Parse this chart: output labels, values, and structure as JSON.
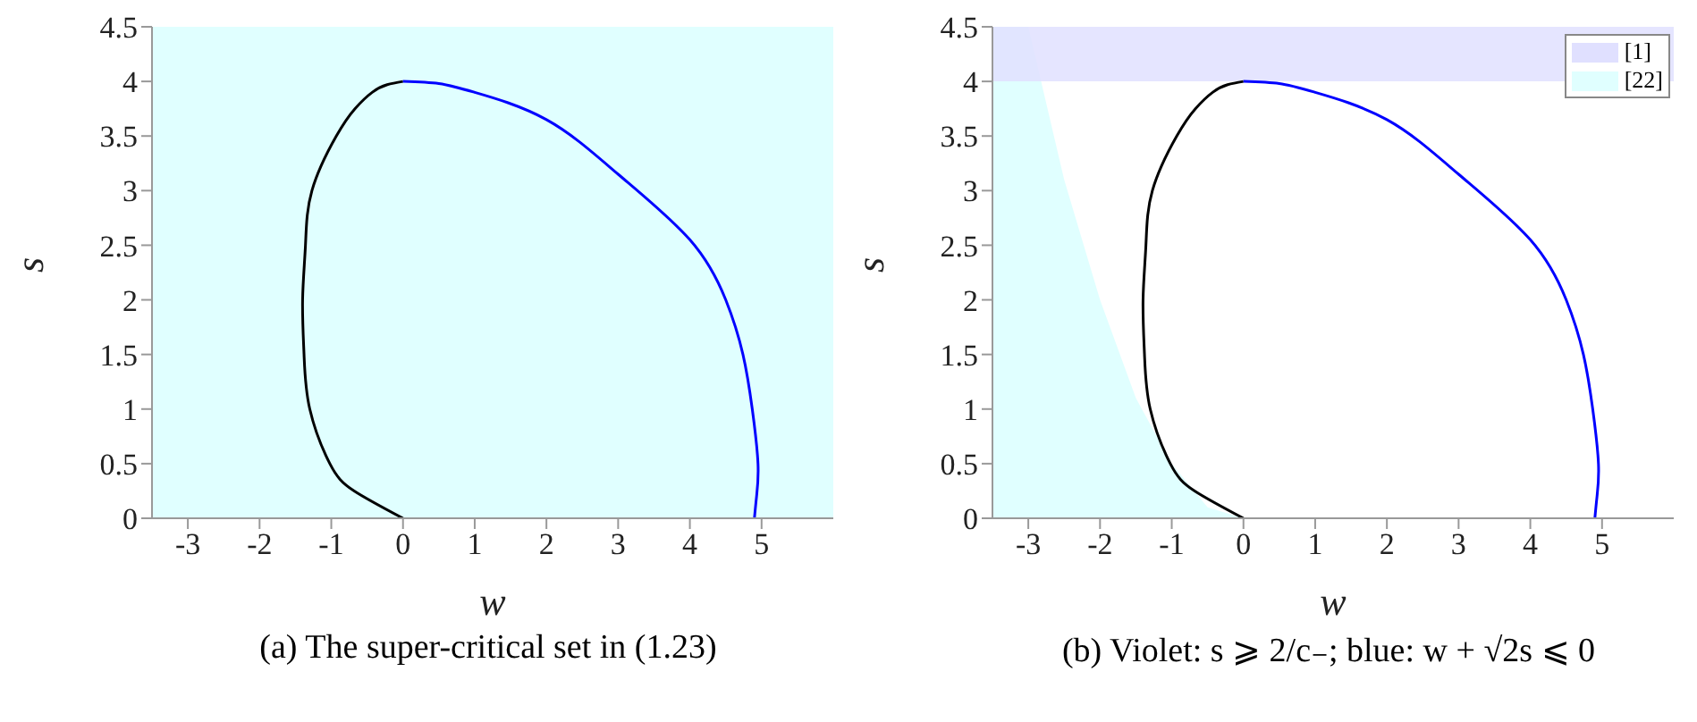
{
  "chart_data": [
    {
      "type": "line",
      "title": "(a) The super-critical set in (1.23)",
      "xlabel": "w",
      "ylabel": "s",
      "xlim": [
        -3.5,
        6
      ],
      "ylim": [
        0,
        4.5
      ],
      "xticks": [
        -3,
        -2,
        -1,
        0,
        1,
        2,
        3,
        4,
        5
      ],
      "yticks": [
        0,
        0.5,
        1,
        1.5,
        2,
        2.5,
        3,
        3.5,
        4,
        4.5
      ],
      "grid": false,
      "legend": false,
      "bands": [
        {
          "axis": "x",
          "from": -3.5,
          "to": 6,
          "color": "#e0ffff"
        }
      ],
      "series": [
        {
          "color": "#000000",
          "x": [
            0,
            -0.68,
            -1.02,
            -1.3,
            -1.38,
            -1.4,
            -1.36,
            -1.27,
            -0.93,
            -0.67,
            -0.43,
            -0.22,
            0
          ],
          "values": [
            0,
            0.25,
            0.5,
            1,
            1.5,
            2,
            2.5,
            3,
            3.5,
            3.75,
            3.9,
            3.97,
            4
          ]
        },
        {
          "color": "#0000ff",
          "x": [
            0,
            0.5,
            1,
            2,
            3,
            4,
            4.5,
            4.74,
            4.87,
            4.95,
            4.93,
            4.9
          ],
          "values": [
            4,
            3.98,
            3.9,
            3.65,
            3.15,
            2.55,
            2,
            1.5,
            1,
            0.5,
            0.2,
            0
          ]
        }
      ]
    },
    {
      "type": "line",
      "title": "(b) Violet: s ⩾ 2/c₋; blue: w + √2s ⩽ 0",
      "xlabel": "w",
      "ylabel": "s",
      "xlim": [
        -3.5,
        6
      ],
      "ylim": [
        0,
        4.5
      ],
      "xticks": [
        -3,
        -2,
        -1,
        0,
        1,
        2,
        3,
        4,
        5
      ],
      "yticks": [
        0,
        0.5,
        1,
        1.5,
        2,
        2.5,
        3,
        3.5,
        4,
        4.5
      ],
      "grid": false,
      "legend": "top right",
      "bands": [
        {
          "axis": "y",
          "from": 4,
          "to": 4.5,
          "label": "[1]",
          "color": "#e0e0ff"
        }
      ],
      "series": [
        {
          "type": "area",
          "name": "[22]",
          "color": "#e0ffff",
          "x": [
            -3.5,
            -3,
            -2.5,
            -2,
            -1.5,
            -1,
            -0.5,
            0
          ],
          "values": [
            4.5,
            4.5,
            3.1,
            2,
            1.1,
            0.5,
            0.1,
            0
          ]
        },
        {
          "color": "#000000",
          "x": [
            0,
            -0.68,
            -1.02,
            -1.3,
            -1.38,
            -1.4,
            -1.36,
            -1.27,
            -0.93,
            -0.67,
            -0.43,
            -0.22,
            0
          ],
          "values": [
            0,
            0.25,
            0.5,
            1,
            1.5,
            2,
            2.5,
            3,
            3.5,
            3.75,
            3.9,
            3.97,
            4
          ]
        },
        {
          "color": "#0000ff",
          "x": [
            0,
            0.5,
            1,
            2,
            3,
            4,
            4.5,
            4.74,
            4.87,
            4.95,
            4.93,
            4.9
          ],
          "values": [
            4,
            3.98,
            3.9,
            3.65,
            3.15,
            2.55,
            2,
            1.5,
            1,
            0.5,
            0.2,
            0
          ]
        }
      ]
    }
  ]
}
